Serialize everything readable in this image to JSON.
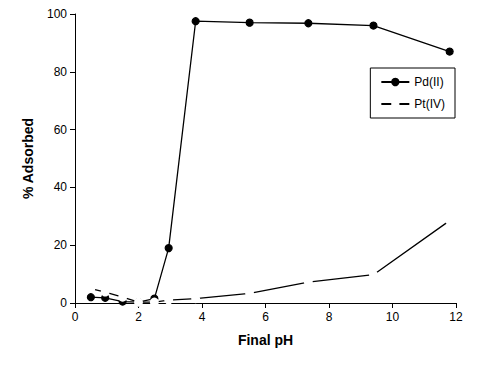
{
  "chart_data": {
    "type": "line",
    "x_label": "Final pH",
    "y_label": "% Adsorbed",
    "xlim": [
      0,
      12
    ],
    "xticks": [
      0,
      2,
      4,
      6,
      8,
      10,
      12
    ],
    "ylim": [
      0,
      100
    ],
    "yticks": [
      0,
      20,
      40,
      60,
      80,
      100
    ],
    "grid": false,
    "legend": "right",
    "series": [
      {
        "name": "Pd(II)",
        "color": "#000000",
        "marker": "circle",
        "line_style": "solid",
        "x": [
          0.5,
          0.95,
          1.5,
          2.0,
          2.5,
          2.95,
          3.8,
          5.5,
          7.35,
          9.4,
          11.8
        ],
        "values": [
          2,
          1.8,
          0.5,
          0.3,
          1.5,
          19,
          97.5,
          97,
          96.8,
          96,
          87
        ]
      },
      {
        "name": "Pt(IV)",
        "color": "#000000",
        "marker": "open_circle",
        "line_style": "solid",
        "x": [
          0.5,
          0.95,
          1.5,
          2.0,
          2.5,
          2.95,
          3.8,
          5.5,
          7.35,
          9.4,
          11.8
        ],
        "values": [
          5,
          3.8,
          2,
          0.3,
          0.3,
          1,
          1.5,
          3.3,
          7.2,
          9.8,
          28.5
        ]
      }
    ]
  }
}
